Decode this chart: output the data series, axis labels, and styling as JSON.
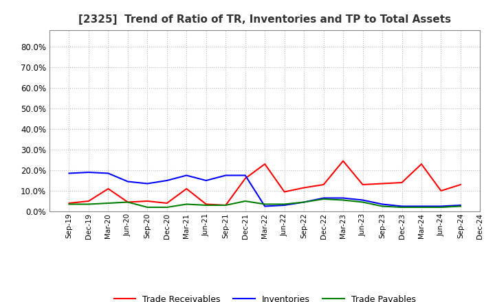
{
  "title": "[2325]  Trend of Ratio of TR, Inventories and TP to Total Assets",
  "labels": [
    "Sep-19",
    "Dec-19",
    "Mar-20",
    "Jun-20",
    "Sep-20",
    "Dec-20",
    "Mar-21",
    "Jun-21",
    "Sep-21",
    "Dec-21",
    "Mar-22",
    "Jun-22",
    "Sep-22",
    "Dec-22",
    "Mar-23",
    "Jun-23",
    "Sep-23",
    "Dec-23",
    "Mar-24",
    "Jun-24",
    "Sep-24",
    "Dec-24"
  ],
  "trade_receivables": [
    4.0,
    5.0,
    11.0,
    4.5,
    5.0,
    4.0,
    11.0,
    3.5,
    3.0,
    16.0,
    23.0,
    9.5,
    11.5,
    13.0,
    24.5,
    13.0,
    13.5,
    14.0,
    23.0,
    10.0,
    13.0,
    null
  ],
  "inventories": [
    18.5,
    19.0,
    18.5,
    14.5,
    13.5,
    15.0,
    17.5,
    15.0,
    17.5,
    17.5,
    2.5,
    3.0,
    4.5,
    6.5,
    6.5,
    5.5,
    3.5,
    2.5,
    2.5,
    2.5,
    3.0,
    null
  ],
  "trade_payables": [
    3.5,
    3.5,
    4.0,
    4.5,
    2.0,
    2.0,
    3.5,
    3.0,
    3.0,
    5.0,
    3.5,
    3.5,
    4.5,
    6.0,
    5.5,
    4.5,
    2.5,
    2.0,
    2.0,
    2.0,
    2.5,
    null
  ],
  "tr_color": "#FF0000",
  "inv_color": "#0000FF",
  "tp_color": "#008000",
  "ylim_max": 0.88,
  "yticks": [
    0.0,
    0.1,
    0.2,
    0.3,
    0.4,
    0.5,
    0.6,
    0.7,
    0.8
  ],
  "legend_labels": [
    "Trade Receivables",
    "Inventories",
    "Trade Payables"
  ],
  "bg_color": "#FFFFFF",
  "grid_color": "#AAAAAA"
}
